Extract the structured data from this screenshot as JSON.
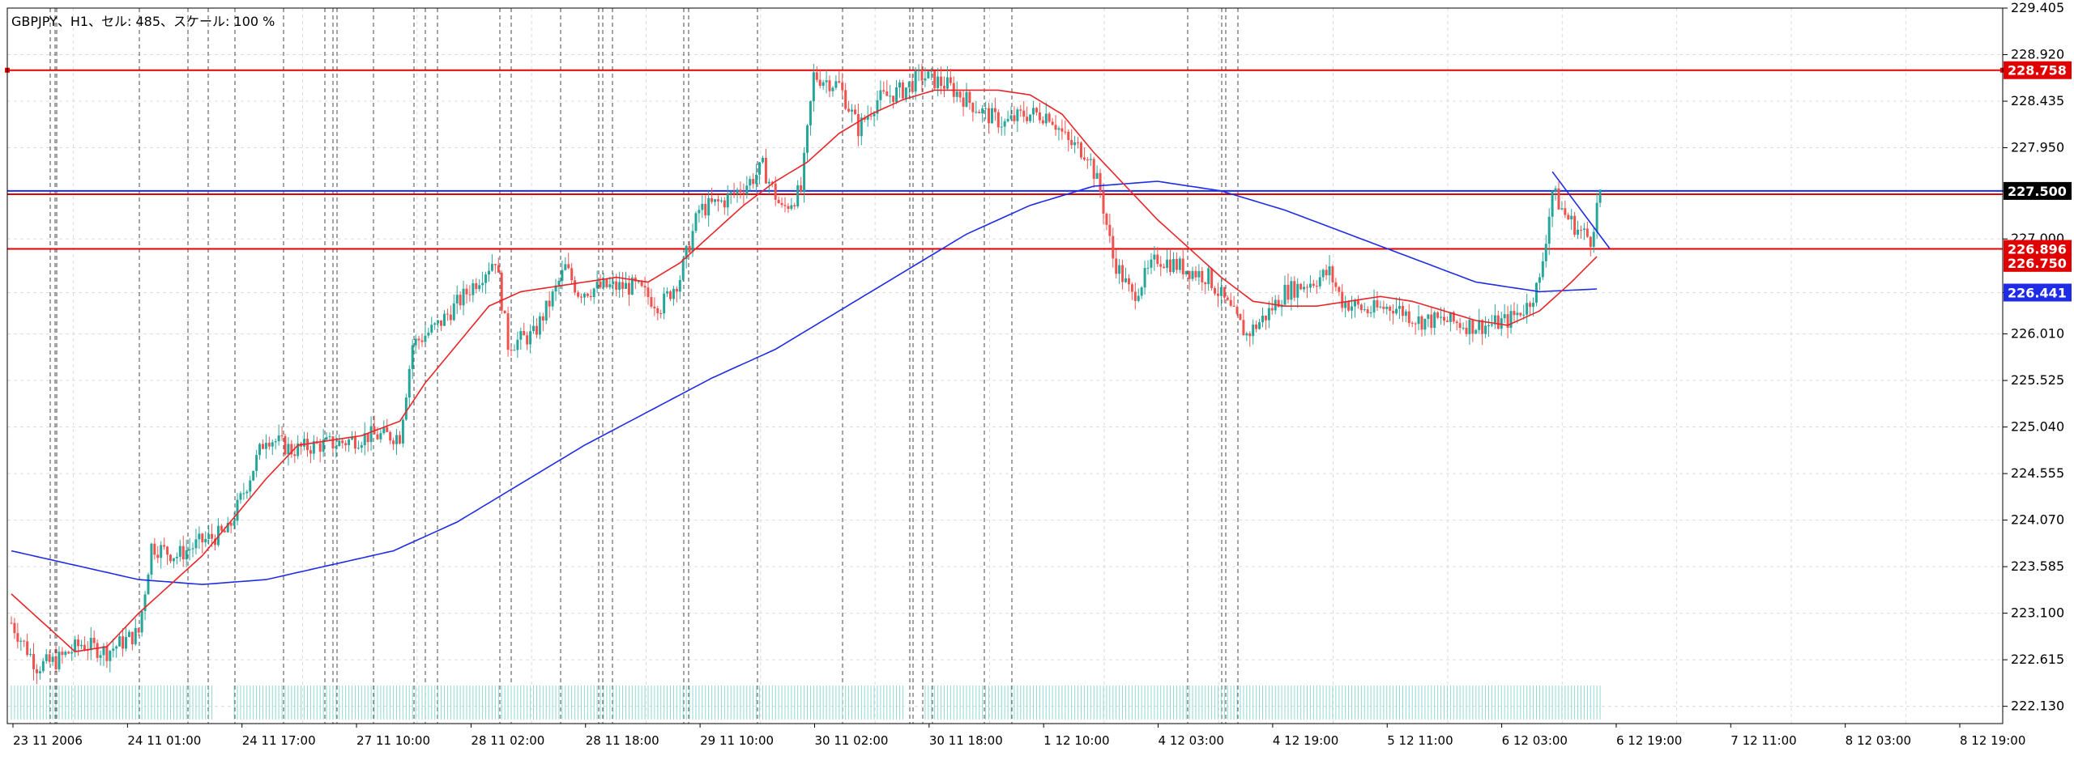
{
  "title": "GBPJPY、H1、セル: 485、スケール: 100 %",
  "colors": {
    "background": "#ffffff",
    "grid": "#dcdcdc",
    "candle_up": "#26a69a",
    "candle_down": "#ef5350",
    "ma_fast": "#e8262a",
    "ma_slow": "#1e2ce6",
    "h_line_red": "#e00000",
    "h_line_blue": "#1e2ce6",
    "volume": "#8fd8d0",
    "label_red_bg": "#e00000",
    "label_blue_bg": "#1e2ce6",
    "label_black_bg": "#000000"
  },
  "chart_data": {
    "type": "candlestick",
    "symbol": "GBPJPY",
    "timeframe": "H1",
    "cells": 485,
    "scale": "100 %",
    "ylim": [
      221.95,
      229.405
    ],
    "y_ticks": [
      "229.405",
      "228.920",
      "228.435",
      "227.950",
      "227.500",
      "227.000",
      "226.441",
      "226.010",
      "225.525",
      "225.040",
      "224.555",
      "224.070",
      "223.585",
      "223.100",
      "222.615",
      "222.130"
    ],
    "x_labels": [
      "23 11 2006",
      "24 11 01:00",
      "24 11 17:00",
      "27 11 10:00",
      "28 11 02:00",
      "28 11 18:00",
      "29 11 10:00",
      "30 11 02:00",
      "30 11 18:00",
      "1 12 10:00",
      "4 12 03:00",
      "4 12 19:00",
      "5 12 11:00",
      "6 12 03:00",
      "6 12 19:00",
      "7 12 11:00",
      "8 12 03:00",
      "8 12 19:00"
    ],
    "closes_anchor": [
      [
        0,
        223.0
      ],
      [
        8,
        222.55
      ],
      [
        14,
        222.6
      ],
      [
        22,
        222.78
      ],
      [
        30,
        222.7
      ],
      [
        40,
        222.9
      ],
      [
        44,
        223.8
      ],
      [
        52,
        223.7
      ],
      [
        60,
        223.85
      ],
      [
        68,
        223.95
      ],
      [
        74,
        224.45
      ],
      [
        80,
        224.95
      ],
      [
        88,
        224.8
      ],
      [
        96,
        224.85
      ],
      [
        104,
        224.88
      ],
      [
        112,
        224.95
      ],
      [
        122,
        224.95
      ],
      [
        126,
        225.9
      ],
      [
        134,
        226.1
      ],
      [
        142,
        226.4
      ],
      [
        152,
        226.8
      ],
      [
        156,
        225.9
      ],
      [
        164,
        226.0
      ],
      [
        170,
        226.4
      ],
      [
        174,
        226.7
      ],
      [
        178,
        226.45
      ],
      [
        186,
        226.5
      ],
      [
        196,
        226.5
      ],
      [
        204,
        226.3
      ],
      [
        210,
        226.6
      ],
      [
        216,
        227.3
      ],
      [
        224,
        227.4
      ],
      [
        232,
        227.6
      ],
      [
        236,
        227.75
      ],
      [
        242,
        227.3
      ],
      [
        248,
        227.5
      ],
      [
        252,
        228.7
      ],
      [
        260,
        228.6
      ],
      [
        266,
        228.15
      ],
      [
        272,
        228.45
      ],
      [
        280,
        228.55
      ],
      [
        286,
        228.7
      ],
      [
        294,
        228.6
      ],
      [
        300,
        228.45
      ],
      [
        306,
        228.3
      ],
      [
        312,
        228.2
      ],
      [
        318,
        228.3
      ],
      [
        326,
        228.3
      ],
      [
        332,
        228.0
      ],
      [
        338,
        227.9
      ],
      [
        342,
        227.5
      ],
      [
        346,
        226.8
      ],
      [
        352,
        226.4
      ],
      [
        360,
        226.8
      ],
      [
        368,
        226.7
      ],
      [
        376,
        226.6
      ],
      [
        382,
        226.3
      ],
      [
        388,
        226.0
      ],
      [
        394,
        226.2
      ],
      [
        400,
        226.45
      ],
      [
        408,
        226.55
      ],
      [
        414,
        226.65
      ],
      [
        418,
        226.35
      ],
      [
        426,
        226.25
      ],
      [
        434,
        226.3
      ],
      [
        442,
        226.15
      ],
      [
        450,
        226.15
      ],
      [
        458,
        226.1
      ],
      [
        464,
        226.1
      ],
      [
        470,
        226.15
      ],
      [
        476,
        226.3
      ],
      [
        480,
        226.55
      ],
      [
        484,
        227.5
      ],
      [
        488,
        227.25
      ],
      [
        492,
        227.1
      ],
      [
        496,
        227.0
      ],
      [
        499,
        227.5
      ]
    ],
    "ma_fast_anchor": [
      [
        0,
        223.3
      ],
      [
        20,
        222.7
      ],
      [
        30,
        222.75
      ],
      [
        40,
        223.1
      ],
      [
        60,
        223.7
      ],
      [
        70,
        224.1
      ],
      [
        80,
        224.5
      ],
      [
        90,
        224.85
      ],
      [
        100,
        224.9
      ],
      [
        110,
        224.95
      ],
      [
        122,
        225.1
      ],
      [
        130,
        225.5
      ],
      [
        140,
        225.9
      ],
      [
        150,
        226.3
      ],
      [
        160,
        226.45
      ],
      [
        170,
        226.5
      ],
      [
        180,
        226.55
      ],
      [
        190,
        226.6
      ],
      [
        200,
        226.55
      ],
      [
        210,
        226.75
      ],
      [
        220,
        227.05
      ],
      [
        230,
        227.35
      ],
      [
        240,
        227.6
      ],
      [
        250,
        227.8
      ],
      [
        260,
        228.1
      ],
      [
        270,
        228.3
      ],
      [
        280,
        228.45
      ],
      [
        290,
        228.55
      ],
      [
        300,
        228.55
      ],
      [
        310,
        228.55
      ],
      [
        320,
        228.5
      ],
      [
        330,
        228.3
      ],
      [
        340,
        227.9
      ],
      [
        350,
        227.55
      ],
      [
        360,
        227.2
      ],
      [
        370,
        226.9
      ],
      [
        380,
        226.6
      ],
      [
        390,
        226.35
      ],
      [
        400,
        226.3
      ],
      [
        410,
        226.3
      ],
      [
        420,
        226.35
      ],
      [
        430,
        226.4
      ],
      [
        440,
        226.35
      ],
      [
        450,
        226.25
      ],
      [
        460,
        226.15
      ],
      [
        470,
        226.1
      ],
      [
        480,
        226.25
      ],
      [
        490,
        226.55
      ],
      [
        499,
        226.85
      ]
    ],
    "ma_slow_anchor": [
      [
        0,
        223.75
      ],
      [
        20,
        223.6
      ],
      [
        40,
        223.45
      ],
      [
        60,
        223.4
      ],
      [
        80,
        223.45
      ],
      [
        100,
        223.6
      ],
      [
        120,
        223.75
      ],
      [
        140,
        224.05
      ],
      [
        160,
        224.45
      ],
      [
        180,
        224.85
      ],
      [
        200,
        225.2
      ],
      [
        220,
        225.55
      ],
      [
        240,
        225.85
      ],
      [
        260,
        226.25
      ],
      [
        280,
        226.65
      ],
      [
        300,
        227.05
      ],
      [
        320,
        227.35
      ],
      [
        340,
        227.55
      ],
      [
        360,
        227.6
      ],
      [
        380,
        227.5
      ],
      [
        400,
        227.3
      ],
      [
        420,
        227.05
      ],
      [
        440,
        226.8
      ],
      [
        460,
        226.55
      ],
      [
        480,
        226.45
      ],
      [
        499,
        226.48
      ]
    ],
    "volume_ranges": [
      [
        0,
        63
      ],
      [
        70,
        280
      ],
      [
        287,
        499
      ]
    ],
    "h_lines": [
      {
        "price": "228.758",
        "color": "red"
      },
      {
        "price": "227.500",
        "color": "blue"
      },
      {
        "price": "227.465",
        "color": "red"
      },
      {
        "price": "226.896",
        "color": "red"
      }
    ],
    "price_labels": [
      {
        "text": "228.758",
        "price": 228.758,
        "style": "red"
      },
      {
        "text": "227.500",
        "price": 227.5,
        "style": "black"
      },
      {
        "text": "226.896",
        "price": 226.896,
        "style": "red"
      },
      {
        "text": "226.750",
        "price": 226.75,
        "style": "red"
      },
      {
        "text": "226.441",
        "price": 226.441,
        "style": "blue"
      }
    ],
    "trend_line": {
      "from": [
        484,
        227.7
      ],
      "to": [
        502,
        226.9
      ],
      "color": "blue"
    }
  }
}
